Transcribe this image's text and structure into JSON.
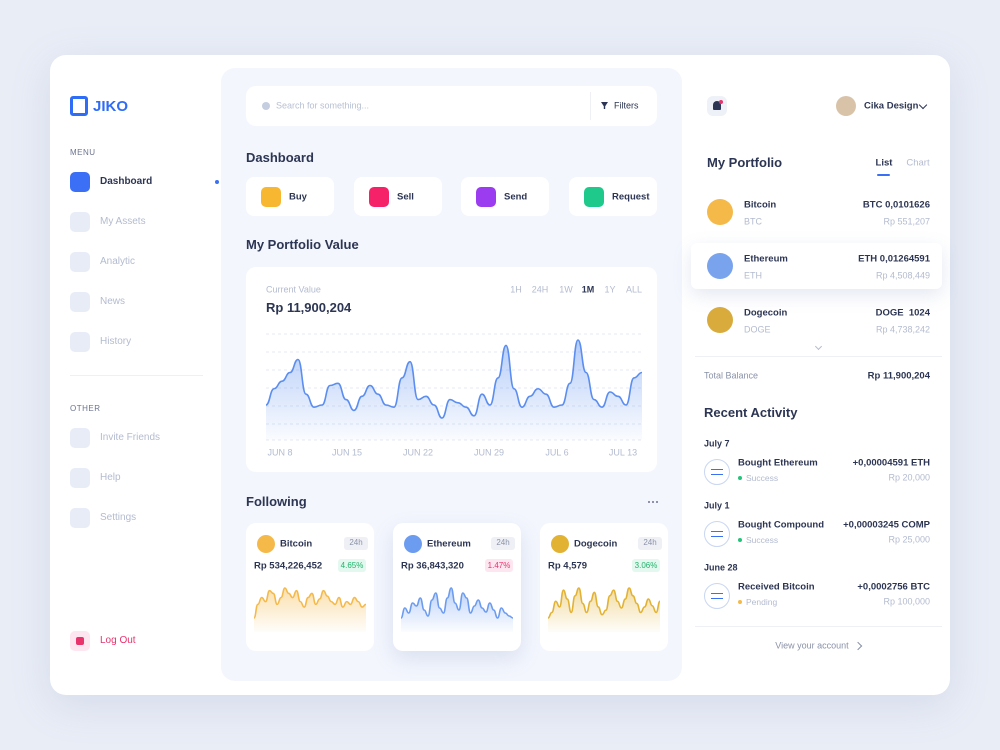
{
  "brand": "JIKO",
  "sidebar": {
    "menu_title": "MENU",
    "menu": [
      "Dashboard",
      "My Assets",
      "Analytic",
      "News",
      "History"
    ],
    "other_title": "OTHER",
    "other": [
      "Invite Friends",
      "Help",
      "Settings"
    ],
    "logout": "Log Out"
  },
  "search": {
    "placeholder": "Search for something...",
    "filters": "Filters"
  },
  "dashboard": {
    "title": "Dashboard",
    "actions": [
      "Buy",
      "Sell",
      "Send",
      "Request"
    ]
  },
  "portfolio_value": {
    "title": "My Portfolio Value",
    "label": "Current Value",
    "value": "Rp 11,900,204",
    "ranges": [
      "1H",
      "24H",
      "1W",
      "1M",
      "1Y",
      "ALL"
    ],
    "chart": {
      "type": "area",
      "x_labels": [
        "JUN 8",
        "JUN 15",
        "JUN 22",
        "JUN 29",
        "JUL 6",
        "JUL 13"
      ],
      "values": [
        30,
        45,
        52,
        60,
        72,
        40,
        28,
        30,
        48,
        50,
        35,
        25,
        38,
        48,
        40,
        30,
        28,
        55,
        70,
        35,
        38,
        30,
        18,
        35,
        32,
        28,
        20,
        40,
        30,
        55,
        85,
        45,
        28,
        38,
        45,
        40,
        28,
        30,
        50,
        90,
        60,
        35,
        28,
        42,
        38,
        30,
        55,
        60
      ]
    }
  },
  "following": {
    "title": "Following",
    "cards": [
      {
        "name": "Bitcoin",
        "period": "24h",
        "price": "Rp 534,226,452",
        "change": "4.65%",
        "chart": {
          "type": "area",
          "values": [
            40,
            50,
            55,
            52,
            60,
            58,
            50,
            55,
            62,
            58,
            55,
            60,
            52,
            48,
            55,
            58,
            50,
            54,
            60,
            56,
            52,
            50,
            55,
            48,
            52,
            50,
            55,
            52,
            48,
            50
          ]
        }
      },
      {
        "name": "Ethereum",
        "period": "24h",
        "price": "Rp 36,843,320",
        "change": "1.47%",
        "chart": {
          "type": "area",
          "values": [
            30,
            40,
            35,
            45,
            42,
            50,
            38,
            32,
            48,
            55,
            40,
            35,
            50,
            60,
            45,
            38,
            55,
            50,
            35,
            42,
            48,
            40,
            36,
            45,
            38,
            30,
            40,
            35,
            32,
            30
          ]
        }
      },
      {
        "name": "Dogecoin",
        "period": "24h",
        "price": "Rp 4,579",
        "change": "3.06%",
        "chart": {
          "type": "area",
          "values": [
            35,
            40,
            50,
            45,
            60,
            52,
            40,
            55,
            62,
            48,
            40,
            50,
            58,
            45,
            38,
            42,
            55,
            60,
            50,
            44,
            52,
            62,
            55,
            48,
            40,
            45,
            52,
            46,
            40,
            50
          ]
        }
      }
    ]
  },
  "user": {
    "name": "Cika Design"
  },
  "my_portfolio": {
    "title": "My Portfolio",
    "tabs": [
      "List",
      "Chart"
    ],
    "assets": [
      {
        "name": "Bitcoin",
        "symbol": "BTC",
        "amount": "BTC 0,0101626",
        "value": "Rp 551,207"
      },
      {
        "name": "Ethereum",
        "symbol": "ETH",
        "amount": "ETH 0,01264591",
        "value": "Rp 4,508,449"
      },
      {
        "name": "Dogecoin",
        "symbol": "DOGE",
        "amount": "DOGE  1024",
        "value": "Rp 4,738,242"
      }
    ],
    "total_label": "Total Balance",
    "total": "Rp 11,900,204"
  },
  "recent_activity": {
    "title": "Recent Activity",
    "groups": [
      {
        "date": "July 7",
        "items": [
          {
            "title": "Bought Ethereum",
            "status": "Success",
            "amount": "+0,00004591 ETH",
            "value": "Rp 20,000"
          }
        ]
      },
      {
        "date": "July 1",
        "items": [
          {
            "title": "Bought Compound",
            "status": "Success",
            "amount": "+0,00003245 COMP",
            "value": "Rp 25,000"
          }
        ]
      },
      {
        "date": "June 28",
        "items": [
          {
            "title": "Received Bitcoin",
            "status": "Pending",
            "amount": "+0,0002756 BTC",
            "value": "Rp 100,000"
          }
        ]
      }
    ]
  },
  "view_account": "View your account"
}
